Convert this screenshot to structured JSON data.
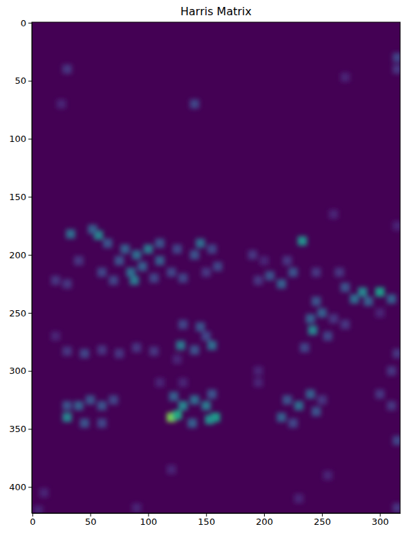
{
  "chart_data": {
    "type": "heatmap",
    "title": "Harris Matrix",
    "color": "viridis",
    "xlim": [
      -0.5,
      317.5
    ],
    "ylim": [
      422.5,
      -0.5
    ],
    "xticks": [
      0,
      50,
      100,
      150,
      200,
      250,
      300
    ],
    "yticks": [
      0,
      50,
      100,
      150,
      200,
      250,
      300,
      350,
      400
    ],
    "zlim": [
      0,
      1
    ],
    "cell_size": [
      8,
      8
    ],
    "cells": [
      [
        33,
        182,
        0.35
      ],
      [
        57,
        183,
        0.45
      ],
      [
        52,
        178,
        0.3
      ],
      [
        65,
        190,
        0.25
      ],
      [
        80,
        195,
        0.3
      ],
      [
        90,
        200,
        0.35
      ],
      [
        100,
        195,
        0.4
      ],
      [
        95,
        210,
        0.3
      ],
      [
        85,
        215,
        0.35
      ],
      [
        88,
        222,
        0.4
      ],
      [
        75,
        205,
        0.25
      ],
      [
        110,
        190,
        0.25
      ],
      [
        110,
        205,
        0.3
      ],
      [
        120,
        215,
        0.2
      ],
      [
        130,
        220,
        0.2
      ],
      [
        145,
        190,
        0.35
      ],
      [
        140,
        200,
        0.25
      ],
      [
        155,
        195,
        0.2
      ],
      [
        160,
        210,
        0.2
      ],
      [
        150,
        215,
        0.15
      ],
      [
        125,
        195,
        0.2
      ],
      [
        40,
        205,
        0.15
      ],
      [
        20,
        222,
        0.15
      ],
      [
        30,
        225,
        0.15
      ],
      [
        60,
        215,
        0.2
      ],
      [
        70,
        222,
        0.2
      ],
      [
        105,
        220,
        0.2
      ],
      [
        190,
        200,
        0.15
      ],
      [
        200,
        205,
        0.1
      ],
      [
        233,
        188,
        0.5
      ],
      [
        205,
        218,
        0.25
      ],
      [
        215,
        225,
        0.3
      ],
      [
        225,
        215,
        0.25
      ],
      [
        220,
        205,
        0.15
      ],
      [
        195,
        222,
        0.15
      ],
      [
        245,
        215,
        0.15
      ],
      [
        265,
        215,
        0.15
      ],
      [
        300,
        232,
        0.55
      ],
      [
        285,
        232,
        0.45
      ],
      [
        278,
        238,
        0.35
      ],
      [
        310,
        238,
        0.3
      ],
      [
        270,
        228,
        0.25
      ],
      [
        290,
        240,
        0.3
      ],
      [
        245,
        240,
        0.25
      ],
      [
        240,
        255,
        0.3
      ],
      [
        250,
        250,
        0.3
      ],
      [
        242,
        265,
        0.45
      ],
      [
        255,
        270,
        0.2
      ],
      [
        235,
        280,
        0.2
      ],
      [
        260,
        255,
        0.15
      ],
      [
        270,
        260,
        0.15
      ],
      [
        300,
        250,
        0.1
      ],
      [
        315,
        30,
        0.2
      ],
      [
        315,
        40,
        0.15
      ],
      [
        130,
        260,
        0.2
      ],
      [
        145,
        262,
        0.25
      ],
      [
        150,
        270,
        0.2
      ],
      [
        128,
        278,
        0.4
      ],
      [
        140,
        282,
        0.25
      ],
      [
        155,
        278,
        0.35
      ],
      [
        125,
        290,
        0.1
      ],
      [
        30,
        283,
        0.15
      ],
      [
        45,
        285,
        0.2
      ],
      [
        60,
        282,
        0.15
      ],
      [
        75,
        285,
        0.15
      ],
      [
        90,
        280,
        0.15
      ],
      [
        105,
        283,
        0.15
      ],
      [
        20,
        270,
        0.1
      ],
      [
        30,
        340,
        0.45
      ],
      [
        40,
        330,
        0.3
      ],
      [
        50,
        325,
        0.25
      ],
      [
        60,
        330,
        0.25
      ],
      [
        70,
        325,
        0.2
      ],
      [
        45,
        345,
        0.25
      ],
      [
        60,
        345,
        0.2
      ],
      [
        30,
        330,
        0.25
      ],
      [
        120,
        340,
        0.8
      ],
      [
        125,
        338,
        0.6
      ],
      [
        130,
        330,
        0.45
      ],
      [
        140,
        325,
        0.35
      ],
      [
        150,
        330,
        0.4
      ],
      [
        158,
        340,
        0.55
      ],
      [
        153,
        342,
        0.5
      ],
      [
        122,
        322,
        0.3
      ],
      [
        138,
        345,
        0.3
      ],
      [
        155,
        320,
        0.25
      ],
      [
        230,
        330,
        0.35
      ],
      [
        220,
        325,
        0.25
      ],
      [
        240,
        320,
        0.3
      ],
      [
        215,
        340,
        0.3
      ],
      [
        225,
        345,
        0.2
      ],
      [
        245,
        335,
        0.25
      ],
      [
        250,
        325,
        0.15
      ],
      [
        130,
        310,
        0.1
      ],
      [
        110,
        310,
        0.1
      ],
      [
        300,
        320,
        0.15
      ],
      [
        310,
        330,
        0.15
      ],
      [
        315,
        360,
        0.2
      ],
      [
        310,
        300,
        0.15
      ],
      [
        315,
        285,
        0.15
      ],
      [
        195,
        300,
        0.1
      ],
      [
        195,
        310,
        0.1
      ],
      [
        30,
        40,
        0.15
      ],
      [
        140,
        70,
        0.2
      ],
      [
        25,
        70,
        0.1
      ],
      [
        270,
        47,
        0.1
      ],
      [
        10,
        405,
        0.1
      ],
      [
        5,
        420,
        0.1
      ],
      [
        260,
        165,
        0.1
      ],
      [
        315,
        175,
        0.1
      ],
      [
        90,
        418,
        0.1
      ],
      [
        230,
        410,
        0.1
      ],
      [
        315,
        418,
        0.15
      ],
      [
        120,
        385,
        0.1
      ],
      [
        255,
        390,
        0.1
      ]
    ]
  }
}
